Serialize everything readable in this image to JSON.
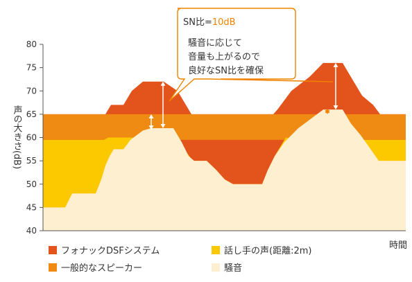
{
  "chart_data": {
    "type": "area",
    "ylabel": "声の大きさ(dB)",
    "xlabel": "時間",
    "ylim": [
      40,
      80
    ],
    "yticks": [
      "40",
      "45",
      "50",
      "55",
      "60",
      "65",
      "70",
      "75",
      "80"
    ],
    "colors": {
      "dsf": "#e2541b",
      "speaker": "#ef8a12",
      "voice": "#fcc800",
      "noise": "#fdefcf",
      "text": "#333333",
      "callout_accent": "#f08200"
    },
    "legend": [
      {
        "key": "dsf",
        "label": "フォナックDSFシステム"
      },
      {
        "key": "voice",
        "label": "話し手の声(距離:2m)"
      },
      {
        "key": "speaker",
        "label": "一般的なスピーカー"
      },
      {
        "key": "noise",
        "label": "騒音"
      }
    ],
    "series": {
      "speaker_band": [
        59.5,
        65
      ],
      "dsf_peaks": [
        72,
        76
      ],
      "noise_peaks": [
        62,
        66
      ],
      "sn_gap": 10
    },
    "callout": {
      "title_prefix": "SN比=",
      "title_value": "10dB",
      "lines": [
        "騒音に応じて",
        "音量も上がるので",
        "良好なSN比を確保"
      ]
    }
  }
}
